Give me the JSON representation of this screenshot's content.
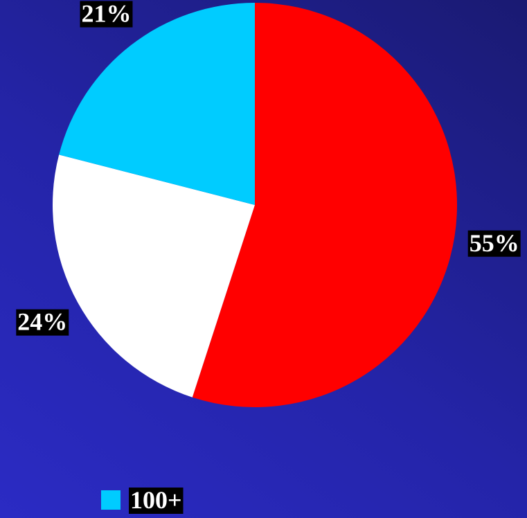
{
  "chart_data": {
    "type": "pie",
    "categories": [
      null,
      null,
      "100+"
    ],
    "values": [
      55,
      24,
      21
    ],
    "value_labels": [
      "55%",
      "24%",
      "21%"
    ],
    "colors": [
      "#ff0000",
      "#ffffff",
      "#00ccff"
    ]
  }
}
